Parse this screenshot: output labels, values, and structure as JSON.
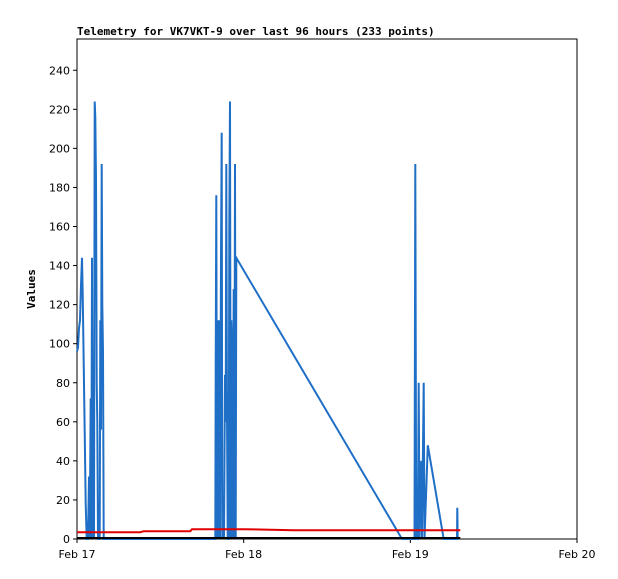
{
  "chart_data": {
    "type": "line",
    "title": "Telemetry for VK7VKT-9 over last 96 hours (233 points)",
    "xlabel": "",
    "ylabel": "Values",
    "x_axis": {
      "type": "time",
      "min": 0,
      "max": 3,
      "unit": "days since Feb 17",
      "ticks": [
        {
          "value": 0,
          "label": "Feb 17"
        },
        {
          "value": 1,
          "label": "Feb 18"
        },
        {
          "value": 2,
          "label": "Feb 19"
        },
        {
          "value": 3,
          "label": "Feb 20"
        }
      ]
    },
    "ylim": [
      0,
      256
    ],
    "yticks": [
      0,
      20,
      40,
      60,
      80,
      100,
      120,
      140,
      160,
      180,
      200,
      220,
      240
    ],
    "grid": false,
    "legend": "none",
    "series": [
      {
        "name": "",
        "color": "#1f6fc6",
        "points": [
          [
            0.0,
            96
          ],
          [
            0.006,
            98
          ],
          [
            0.012,
            108
          ],
          [
            0.018,
            112
          ],
          [
            0.024,
            130
          ],
          [
            0.03,
            144
          ],
          [
            0.034,
            126
          ],
          [
            0.04,
            90
          ],
          [
            0.046,
            55
          ],
          [
            0.052,
            18
          ],
          [
            0.058,
            0
          ],
          [
            0.066,
            0
          ],
          [
            0.072,
            32
          ],
          [
            0.076,
            0
          ],
          [
            0.082,
            72
          ],
          [
            0.086,
            0
          ],
          [
            0.09,
            144
          ],
          [
            0.094,
            0
          ],
          [
            0.098,
            48
          ],
          [
            0.102,
            0
          ],
          [
            0.106,
            224
          ],
          [
            0.11,
            216
          ],
          [
            0.114,
            184
          ],
          [
            0.118,
            80
          ],
          [
            0.122,
            60
          ],
          [
            0.126,
            0
          ],
          [
            0.132,
            0
          ],
          [
            0.136,
            0
          ],
          [
            0.14,
            112
          ],
          [
            0.144,
            56
          ],
          [
            0.148,
            192
          ],
          [
            0.152,
            120
          ],
          [
            0.156,
            96
          ],
          [
            0.16,
            0
          ],
          [
            0.166,
            0
          ],
          [
            0.83,
            0
          ],
          [
            0.832,
            88
          ],
          [
            0.836,
            176
          ],
          [
            0.84,
            0
          ],
          [
            0.844,
            112
          ],
          [
            0.848,
            0
          ],
          [
            0.854,
            112
          ],
          [
            0.858,
            0
          ],
          [
            0.864,
            144
          ],
          [
            0.868,
            208
          ],
          [
            0.872,
            0
          ],
          [
            0.878,
            16
          ],
          [
            0.882,
            0
          ],
          [
            0.888,
            84
          ],
          [
            0.892,
            60
          ],
          [
            0.896,
            192
          ],
          [
            0.9,
            64
          ],
          [
            0.904,
            0
          ],
          [
            0.91,
            0
          ],
          [
            0.914,
            160
          ],
          [
            0.918,
            224
          ],
          [
            0.922,
            0
          ],
          [
            0.926,
            112
          ],
          [
            0.93,
            96
          ],
          [
            0.934,
            0
          ],
          [
            0.94,
            128
          ],
          [
            0.944,
            0
          ],
          [
            0.948,
            192
          ],
          [
            0.952,
            0
          ],
          [
            0.956,
            144
          ],
          [
            1.95,
            0
          ],
          [
            2.025,
            0
          ],
          [
            2.03,
            192
          ],
          [
            2.035,
            0
          ],
          [
            2.045,
            0
          ],
          [
            2.05,
            80
          ],
          [
            2.055,
            0
          ],
          [
            2.065,
            40
          ],
          [
            2.07,
            0
          ],
          [
            2.08,
            80
          ],
          [
            2.085,
            0
          ],
          [
            2.105,
            48
          ],
          [
            2.2,
            0
          ],
          [
            2.28,
            0
          ],
          [
            2.282,
            16
          ],
          [
            2.284,
            0
          ]
        ]
      },
      {
        "name": "",
        "color": "#e00000",
        "points": [
          [
            0.0,
            3.5
          ],
          [
            0.38,
            3.5
          ],
          [
            0.4,
            4
          ],
          [
            0.68,
            4
          ],
          [
            0.69,
            5
          ],
          [
            1.0,
            5
          ],
          [
            1.3,
            4.5
          ],
          [
            2.0,
            4.5
          ],
          [
            2.3,
            4.5
          ]
        ]
      },
      {
        "name": "",
        "color": "#000000",
        "points": [
          [
            0.0,
            0.5
          ],
          [
            2.3,
            0.5
          ]
        ]
      }
    ]
  }
}
